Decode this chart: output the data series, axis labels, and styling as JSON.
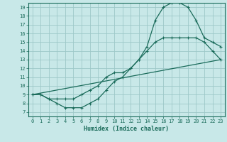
{
  "xlabel": "Humidex (Indice chaleur)",
  "xlim": [
    -0.5,
    23.5
  ],
  "ylim": [
    6.5,
    19.5
  ],
  "xticks": [
    0,
    1,
    2,
    3,
    4,
    5,
    6,
    7,
    8,
    9,
    10,
    11,
    12,
    13,
    14,
    15,
    16,
    17,
    18,
    19,
    20,
    21,
    22,
    23
  ],
  "yticks": [
    7,
    8,
    9,
    10,
    11,
    12,
    13,
    14,
    15,
    16,
    17,
    18,
    19
  ],
  "bg_color": "#c8e8e8",
  "grid_color": "#9dc8c8",
  "line_color": "#1a6b5a",
  "line1_x": [
    0,
    1,
    2,
    3,
    4,
    5,
    6,
    7,
    8,
    9,
    10,
    11,
    12,
    13,
    14,
    15,
    16,
    17,
    18,
    19,
    20,
    21,
    22,
    23
  ],
  "line1_y": [
    9,
    9,
    8.5,
    8,
    7.5,
    7.5,
    7.5,
    8,
    8.5,
    9.5,
    10.5,
    11,
    12,
    13,
    14.5,
    17.5,
    19,
    19.5,
    19.5,
    19,
    17.5,
    15.5,
    15,
    14.5
  ],
  "line2_x": [
    0,
    1,
    2,
    3,
    4,
    5,
    6,
    7,
    8,
    9,
    10,
    11,
    12,
    13,
    14,
    15,
    16,
    17,
    18,
    19,
    20,
    21,
    22,
    23
  ],
  "line2_y": [
    9,
    9,
    8.5,
    8.5,
    8.5,
    8.5,
    9,
    9.5,
    10,
    11,
    11.5,
    11.5,
    12,
    13,
    14,
    15,
    15.5,
    15.5,
    15.5,
    15.5,
    15.5,
    15,
    14,
    13
  ],
  "line3_x": [
    0,
    23
  ],
  "line3_y": [
    9,
    13
  ],
  "marker": "+"
}
